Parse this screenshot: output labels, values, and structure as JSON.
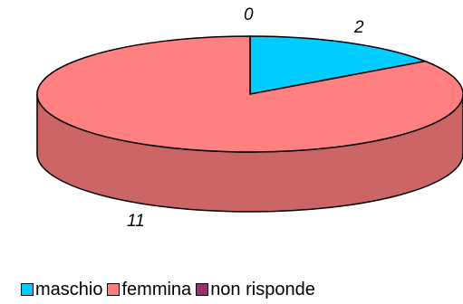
{
  "chart_data": {
    "type": "pie",
    "style": "3d",
    "categories": [
      "maschio",
      "femmina",
      "non risponde"
    ],
    "values": [
      2,
      11,
      0
    ],
    "data_labels": [
      "2",
      "11",
      "0"
    ],
    "colors": [
      "#00ccff",
      "#ff8080",
      "#993366"
    ],
    "side_colors": [
      "#0099cc",
      "#cc6666",
      "#7f3f3f"
    ],
    "legend_position": "bottom-left",
    "title": ""
  }
}
